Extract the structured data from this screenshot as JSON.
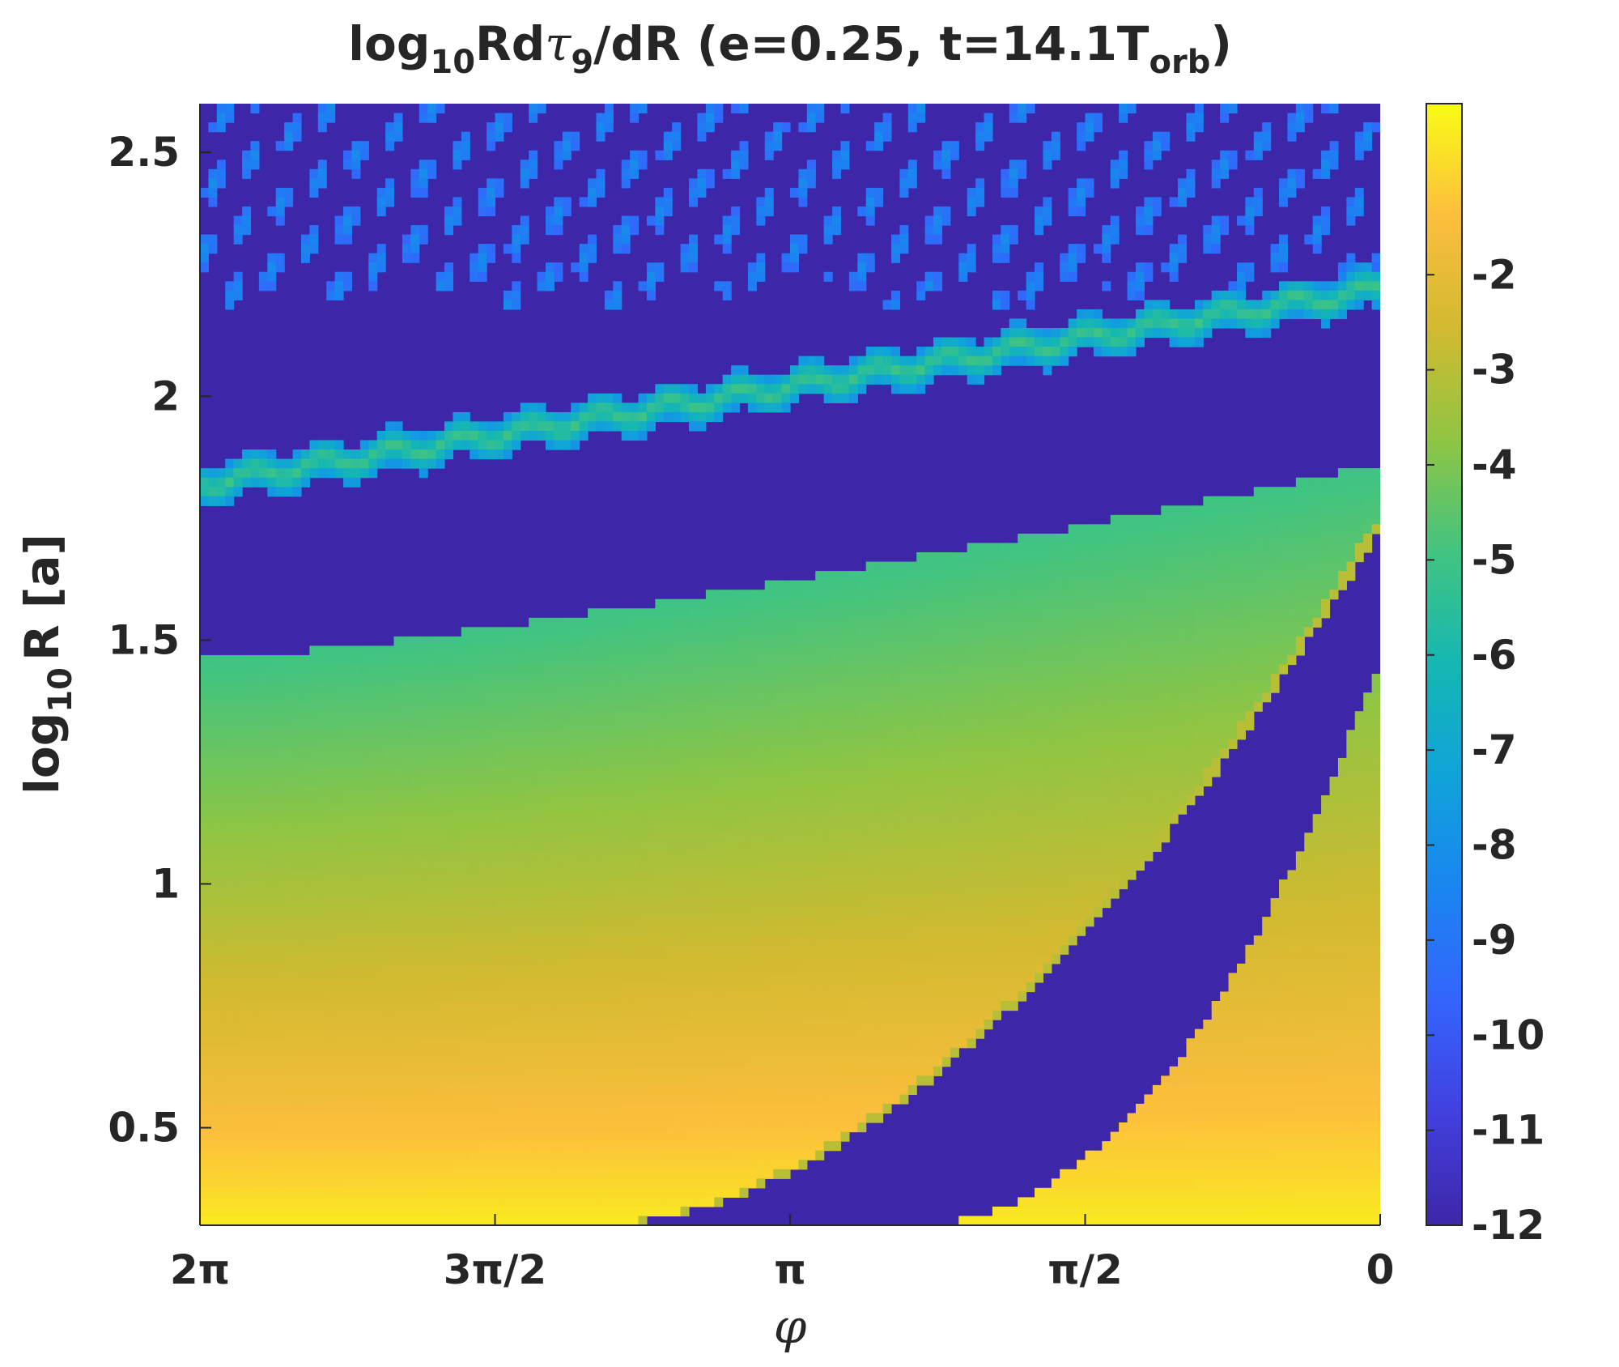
{
  "chart_data": {
    "type": "heatmap",
    "title": {
      "prefix": "log",
      "prefix_sub": "10",
      "middle": "Rd",
      "greek": "τ",
      "greek_sub": "9",
      "after": "/dR (e=0.25, t=14.1T",
      "after_sub": "orb",
      "suffix": ")"
    },
    "xlabel": "φ",
    "ylabel": {
      "prefix": "log",
      "sub": "10",
      "suffix": "R [a]"
    },
    "x_axis": {
      "range": [
        6.2832,
        0
      ],
      "reversed": true,
      "ticks": [
        {
          "value": 6.2832,
          "label": "2π"
        },
        {
          "value": 4.7124,
          "label": "3π/2"
        },
        {
          "value": 3.1416,
          "label": "π"
        },
        {
          "value": 1.5708,
          "label": "π/2"
        },
        {
          "value": 0,
          "label": "0"
        }
      ]
    },
    "y_axis": {
      "range": [
        0.3,
        2.6
      ],
      "ticks": [
        {
          "value": 0.5,
          "label": "0.5"
        },
        {
          "value": 1.0,
          "label": "1"
        },
        {
          "value": 1.5,
          "label": "1.5"
        },
        {
          "value": 2.0,
          "label": "2"
        },
        {
          "value": 2.5,
          "label": "2.5"
        }
      ]
    },
    "colorbar": {
      "colormap": "parula",
      "range": [
        -12,
        -0.2
      ],
      "ticks": [
        {
          "value": -12,
          "label": "-12"
        },
        {
          "value": -11,
          "label": "-11"
        },
        {
          "value": -10,
          "label": "-10"
        },
        {
          "value": -9,
          "label": "-9"
        },
        {
          "value": -8,
          "label": "-8"
        },
        {
          "value": -7,
          "label": "-7"
        },
        {
          "value": -6,
          "label": "-6"
        },
        {
          "value": -5,
          "label": "-5"
        },
        {
          "value": -4,
          "label": "-4"
        },
        {
          "value": -3,
          "label": "-3"
        },
        {
          "value": -2,
          "label": "-2"
        }
      ]
    },
    "regions": {
      "floor_value": -11.8,
      "inner_disk": {
        "value_at_bottom": -0.5,
        "value_at_top": -5.0,
        "top_edge_at_phi_2pi": 1.46,
        "top_edge_at_phi_0": 1.86
      },
      "gap_wedge": {
        "left_boundary_phi_at_bottom": 4.2,
        "right_boundary_phi_at_bottom": 2.55,
        "right_curve_top_at_phi_0": 1.46,
        "left_spiral_top_at_phi_0": 1.76
      },
      "outer_spiral_arm": {
        "value": -5.0,
        "y_at_phi_2pi": 1.82,
        "y_at_phi_0": 2.22,
        "halfwidth": 0.04
      },
      "turbulent_outer_region": {
        "value": -9.5,
        "min_y": 2.2
      }
    }
  }
}
